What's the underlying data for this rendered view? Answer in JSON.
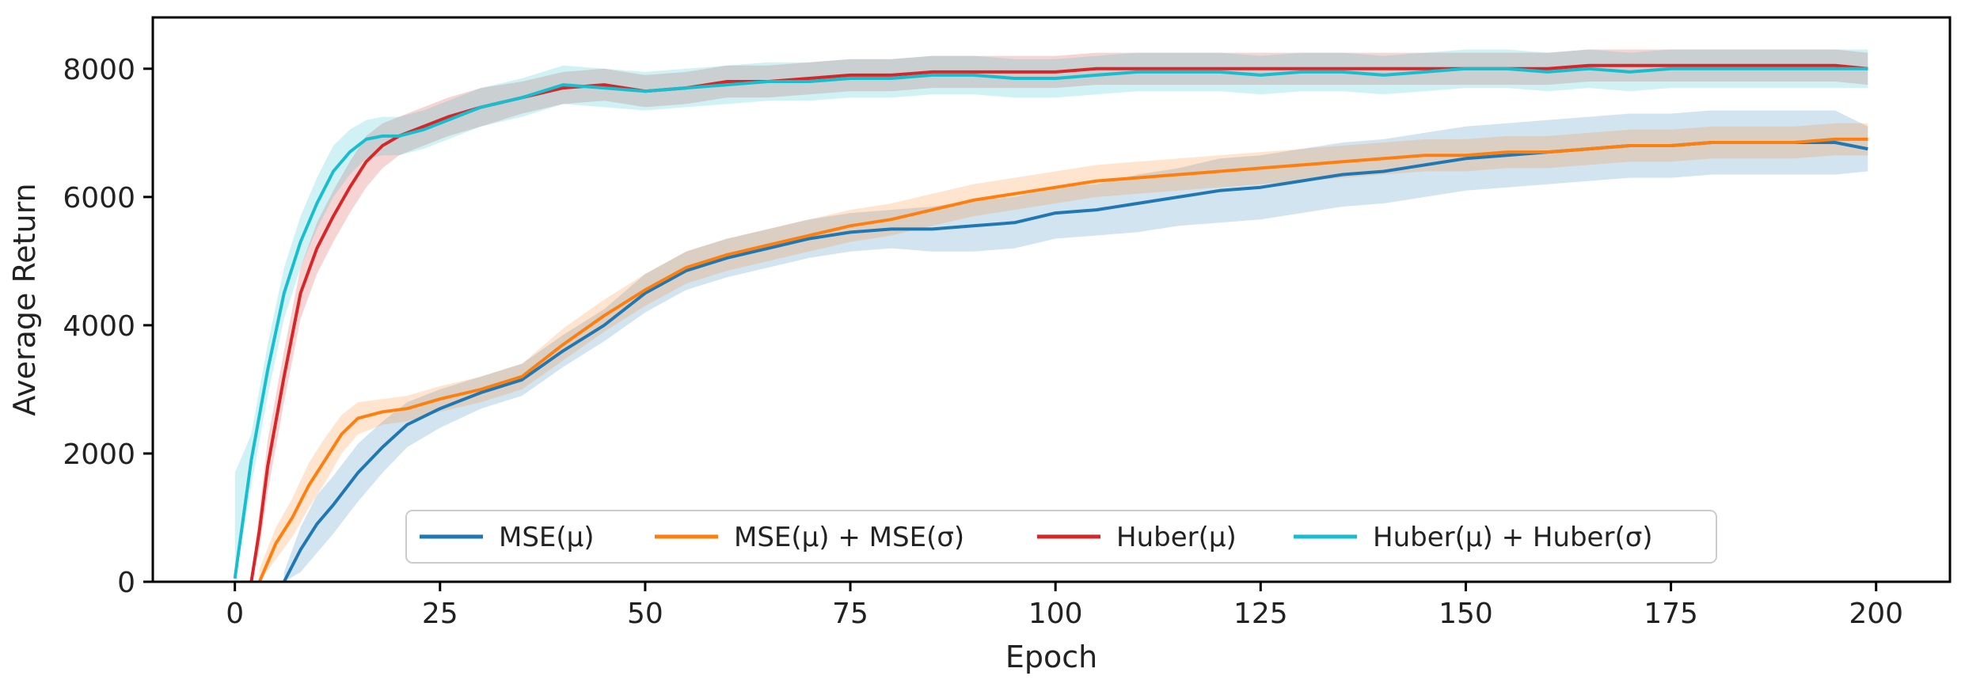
{
  "chart_data": {
    "type": "line",
    "title": "",
    "xlabel": "Epoch",
    "ylabel": "Average Return",
    "xlim": [
      -10,
      209
    ],
    "ylim": [
      0,
      8800
    ],
    "xticks": [
      0,
      25,
      50,
      75,
      100,
      125,
      150,
      175,
      200
    ],
    "yticks": [
      0,
      2000,
      4000,
      6000,
      8000
    ],
    "xtick_labels": [
      "0",
      "25",
      "50",
      "75",
      "100",
      "125",
      "150",
      "175",
      "200"
    ],
    "ytick_labels": [
      "0",
      "2000",
      "4000",
      "6000",
      "8000"
    ],
    "grid": false,
    "legend": {
      "placement": "lower-center",
      "ncol": 4
    },
    "series": [
      {
        "name": "MSE(μ)",
        "color": "#1f77b4",
        "x": [
          6,
          8,
          10,
          12,
          15,
          18,
          21,
          25,
          30,
          35,
          40,
          45,
          50,
          55,
          60,
          65,
          70,
          75,
          80,
          85,
          90,
          95,
          100,
          105,
          110,
          115,
          120,
          125,
          130,
          135,
          140,
          145,
          150,
          155,
          160,
          165,
          170,
          175,
          180,
          185,
          190,
          195,
          199
        ],
        "values": [
          0,
          500,
          900,
          1200,
          1700,
          2100,
          2450,
          2700,
          2950,
          3150,
          3600,
          4000,
          4500,
          4850,
          5050,
          5200,
          5350,
          5450,
          5500,
          5500,
          5550,
          5600,
          5750,
          5800,
          5900,
          6000,
          6100,
          6150,
          6250,
          6350,
          6400,
          6500,
          6600,
          6650,
          6700,
          6750,
          6800,
          6800,
          6850,
          6850,
          6850,
          6850,
          6750
        ],
        "band": [
          [
            0,
            150
          ],
          [
            150,
            850
          ],
          [
            450,
            1350
          ],
          [
            750,
            1650
          ],
          [
            1250,
            2150
          ],
          [
            1700,
            2500
          ],
          [
            2100,
            2800
          ],
          [
            2400,
            3000
          ],
          [
            2700,
            3200
          ],
          [
            2900,
            3400
          ],
          [
            3350,
            3850
          ],
          [
            3750,
            4250
          ],
          [
            4200,
            4800
          ],
          [
            4550,
            5150
          ],
          [
            4750,
            5350
          ],
          [
            4900,
            5500
          ],
          [
            5050,
            5650
          ],
          [
            5150,
            5750
          ],
          [
            5200,
            5800
          ],
          [
            5150,
            5850
          ],
          [
            5150,
            5950
          ],
          [
            5200,
            6000
          ],
          [
            5350,
            6150
          ],
          [
            5400,
            6200
          ],
          [
            5450,
            6350
          ],
          [
            5550,
            6450
          ],
          [
            5600,
            6600
          ],
          [
            5650,
            6650
          ],
          [
            5750,
            6750
          ],
          [
            5850,
            6850
          ],
          [
            5900,
            6900
          ],
          [
            6000,
            7000
          ],
          [
            6100,
            7100
          ],
          [
            6150,
            7150
          ],
          [
            6200,
            7200
          ],
          [
            6250,
            7250
          ],
          [
            6300,
            7300
          ],
          [
            6300,
            7300
          ],
          [
            6350,
            7350
          ],
          [
            6350,
            7350
          ],
          [
            6350,
            7350
          ],
          [
            6350,
            7350
          ],
          [
            6400,
            7100
          ]
        ]
      },
      {
        "name": "MSE(μ) + MSE(σ)",
        "color": "#ff7f0e",
        "x": [
          3,
          5,
          7,
          9,
          11,
          13,
          15,
          18,
          21,
          25,
          30,
          35,
          40,
          45,
          50,
          55,
          60,
          65,
          70,
          75,
          80,
          85,
          90,
          95,
          100,
          105,
          110,
          115,
          120,
          125,
          130,
          135,
          140,
          145,
          150,
          155,
          160,
          165,
          170,
          175,
          180,
          185,
          190,
          195,
          199
        ],
        "values": [
          0,
          600,
          1000,
          1500,
          1900,
          2300,
          2550,
          2650,
          2700,
          2850,
          3000,
          3200,
          3700,
          4150,
          4550,
          4900,
          5100,
          5250,
          5400,
          5550,
          5650,
          5800,
          5950,
          6050,
          6150,
          6250,
          6300,
          6350,
          6400,
          6450,
          6500,
          6550,
          6600,
          6650,
          6650,
          6700,
          6700,
          6750,
          6800,
          6800,
          6850,
          6850,
          6850,
          6900,
          6900
        ],
        "band": [
          [
            0,
            200
          ],
          [
            350,
            850
          ],
          [
            700,
            1300
          ],
          [
            1150,
            1850
          ],
          [
            1550,
            2250
          ],
          [
            2000,
            2600
          ],
          [
            2300,
            2800
          ],
          [
            2450,
            2850
          ],
          [
            2500,
            2900
          ],
          [
            2650,
            3050
          ],
          [
            2800,
            3200
          ],
          [
            3000,
            3400
          ],
          [
            3450,
            3950
          ],
          [
            3900,
            4400
          ],
          [
            4300,
            4800
          ],
          [
            4650,
            5150
          ],
          [
            4850,
            5350
          ],
          [
            5000,
            5500
          ],
          [
            5150,
            5650
          ],
          [
            5300,
            5800
          ],
          [
            5400,
            5900
          ],
          [
            5550,
            6050
          ],
          [
            5700,
            6200
          ],
          [
            5800,
            6300
          ],
          [
            5900,
            6400
          ],
          [
            6000,
            6500
          ],
          [
            6050,
            6550
          ],
          [
            6100,
            6600
          ],
          [
            6150,
            6650
          ],
          [
            6200,
            6700
          ],
          [
            6250,
            6750
          ],
          [
            6300,
            6800
          ],
          [
            6350,
            6850
          ],
          [
            6400,
            6900
          ],
          [
            6400,
            6900
          ],
          [
            6450,
            6950
          ],
          [
            6450,
            6950
          ],
          [
            6500,
            7000
          ],
          [
            6550,
            7050
          ],
          [
            6550,
            7050
          ],
          [
            6600,
            7100
          ],
          [
            6600,
            7100
          ],
          [
            6600,
            7100
          ],
          [
            6650,
            7150
          ],
          [
            6650,
            7150
          ]
        ]
      },
      {
        "name": "Huber(μ)",
        "color": "#d62728",
        "x": [
          2,
          3,
          4,
          6,
          8,
          10,
          12,
          14,
          16,
          18,
          20,
          23,
          26,
          30,
          35,
          40,
          45,
          50,
          55,
          60,
          65,
          70,
          75,
          80,
          85,
          90,
          95,
          100,
          105,
          110,
          115,
          120,
          125,
          130,
          135,
          140,
          145,
          150,
          155,
          160,
          165,
          170,
          175,
          180,
          185,
          190,
          195,
          199
        ],
        "values": [
          0,
          800,
          1800,
          3200,
          4500,
          5200,
          5700,
          6150,
          6550,
          6800,
          6950,
          7100,
          7250,
          7400,
          7550,
          7700,
          7750,
          7650,
          7700,
          7800,
          7800,
          7850,
          7900,
          7900,
          7950,
          7950,
          7950,
          7950,
          8000,
          8000,
          8000,
          8000,
          8000,
          8000,
          8000,
          8000,
          8000,
          8000,
          8000,
          8000,
          8050,
          8050,
          8050,
          8050,
          8050,
          8050,
          8050,
          8000
        ],
        "band": [
          [
            0,
            100
          ],
          [
            500,
            1100
          ],
          [
            1400,
            2200
          ],
          [
            2800,
            3600
          ],
          [
            4100,
            4900
          ],
          [
            4800,
            5600
          ],
          [
            5300,
            6100
          ],
          [
            5750,
            6550
          ],
          [
            6150,
            6950
          ],
          [
            6450,
            7150
          ],
          [
            6650,
            7250
          ],
          [
            6800,
            7400
          ],
          [
            6950,
            7550
          ],
          [
            7100,
            7700
          ],
          [
            7300,
            7800
          ],
          [
            7450,
            7950
          ],
          [
            7500,
            8000
          ],
          [
            7400,
            7900
          ],
          [
            7450,
            7950
          ],
          [
            7550,
            8050
          ],
          [
            7550,
            8050
          ],
          [
            7600,
            8100
          ],
          [
            7650,
            8150
          ],
          [
            7650,
            8150
          ],
          [
            7700,
            8200
          ],
          [
            7700,
            8200
          ],
          [
            7700,
            8200
          ],
          [
            7700,
            8200
          ],
          [
            7750,
            8250
          ],
          [
            7750,
            8250
          ],
          [
            7750,
            8250
          ],
          [
            7750,
            8250
          ],
          [
            7750,
            8250
          ],
          [
            7750,
            8250
          ],
          [
            7750,
            8250
          ],
          [
            7750,
            8250
          ],
          [
            7750,
            8250
          ],
          [
            7750,
            8250
          ],
          [
            7750,
            8250
          ],
          [
            7750,
            8250
          ],
          [
            7800,
            8300
          ],
          [
            7800,
            8300
          ],
          [
            7800,
            8300
          ],
          [
            7800,
            8300
          ],
          [
            7800,
            8300
          ],
          [
            7800,
            8300
          ],
          [
            7800,
            8300
          ],
          [
            7750,
            8250
          ]
        ]
      },
      {
        "name": "Huber(μ) + Huber(σ)",
        "color": "#17becf",
        "x": [
          0,
          2,
          4,
          6,
          8,
          10,
          12,
          14,
          16,
          18,
          20,
          23,
          26,
          30,
          35,
          40,
          45,
          50,
          55,
          60,
          65,
          70,
          75,
          80,
          85,
          90,
          95,
          100,
          105,
          110,
          115,
          120,
          125,
          130,
          135,
          140,
          145,
          150,
          155,
          160,
          165,
          170,
          175,
          180,
          185,
          190,
          195,
          199
        ],
        "values": [
          50,
          1900,
          3300,
          4500,
          5300,
          5900,
          6400,
          6700,
          6900,
          6950,
          6950,
          7050,
          7200,
          7400,
          7550,
          7750,
          7700,
          7650,
          7700,
          7750,
          7800,
          7800,
          7850,
          7850,
          7900,
          7900,
          7850,
          7850,
          7900,
          7950,
          7950,
          7950,
          7900,
          7950,
          7950,
          7900,
          7950,
          8000,
          8000,
          7950,
          8000,
          7950,
          8000,
          8000,
          8000,
          8000,
          8000,
          8000
        ],
        "band": [
          [
            0,
            1700
          ],
          [
            1500,
            2300
          ],
          [
            2900,
            3700
          ],
          [
            4100,
            4900
          ],
          [
            4900,
            5700
          ],
          [
            5500,
            6300
          ],
          [
            6000,
            6800
          ],
          [
            6350,
            7050
          ],
          [
            6600,
            7200
          ],
          [
            6650,
            7250
          ],
          [
            6650,
            7250
          ],
          [
            6750,
            7350
          ],
          [
            6900,
            7500
          ],
          [
            7100,
            7700
          ],
          [
            7250,
            7850
          ],
          [
            7450,
            8050
          ],
          [
            7400,
            8000
          ],
          [
            7350,
            7950
          ],
          [
            7400,
            8000
          ],
          [
            7450,
            8050
          ],
          [
            7500,
            8100
          ],
          [
            7500,
            8100
          ],
          [
            7550,
            8150
          ],
          [
            7550,
            8150
          ],
          [
            7600,
            8200
          ],
          [
            7600,
            8200
          ],
          [
            7550,
            8150
          ],
          [
            7550,
            8150
          ],
          [
            7600,
            8200
          ],
          [
            7650,
            8250
          ],
          [
            7650,
            8250
          ],
          [
            7650,
            8250
          ],
          [
            7600,
            8200
          ],
          [
            7650,
            8250
          ],
          [
            7650,
            8250
          ],
          [
            7600,
            8200
          ],
          [
            7650,
            8250
          ],
          [
            7700,
            8300
          ],
          [
            7700,
            8300
          ],
          [
            7650,
            8250
          ],
          [
            7700,
            8300
          ],
          [
            7650,
            8250
          ],
          [
            7700,
            8300
          ],
          [
            7700,
            8300
          ],
          [
            7700,
            8300
          ],
          [
            7700,
            8300
          ],
          [
            7700,
            8300
          ],
          [
            7700,
            8300
          ]
        ]
      }
    ]
  }
}
